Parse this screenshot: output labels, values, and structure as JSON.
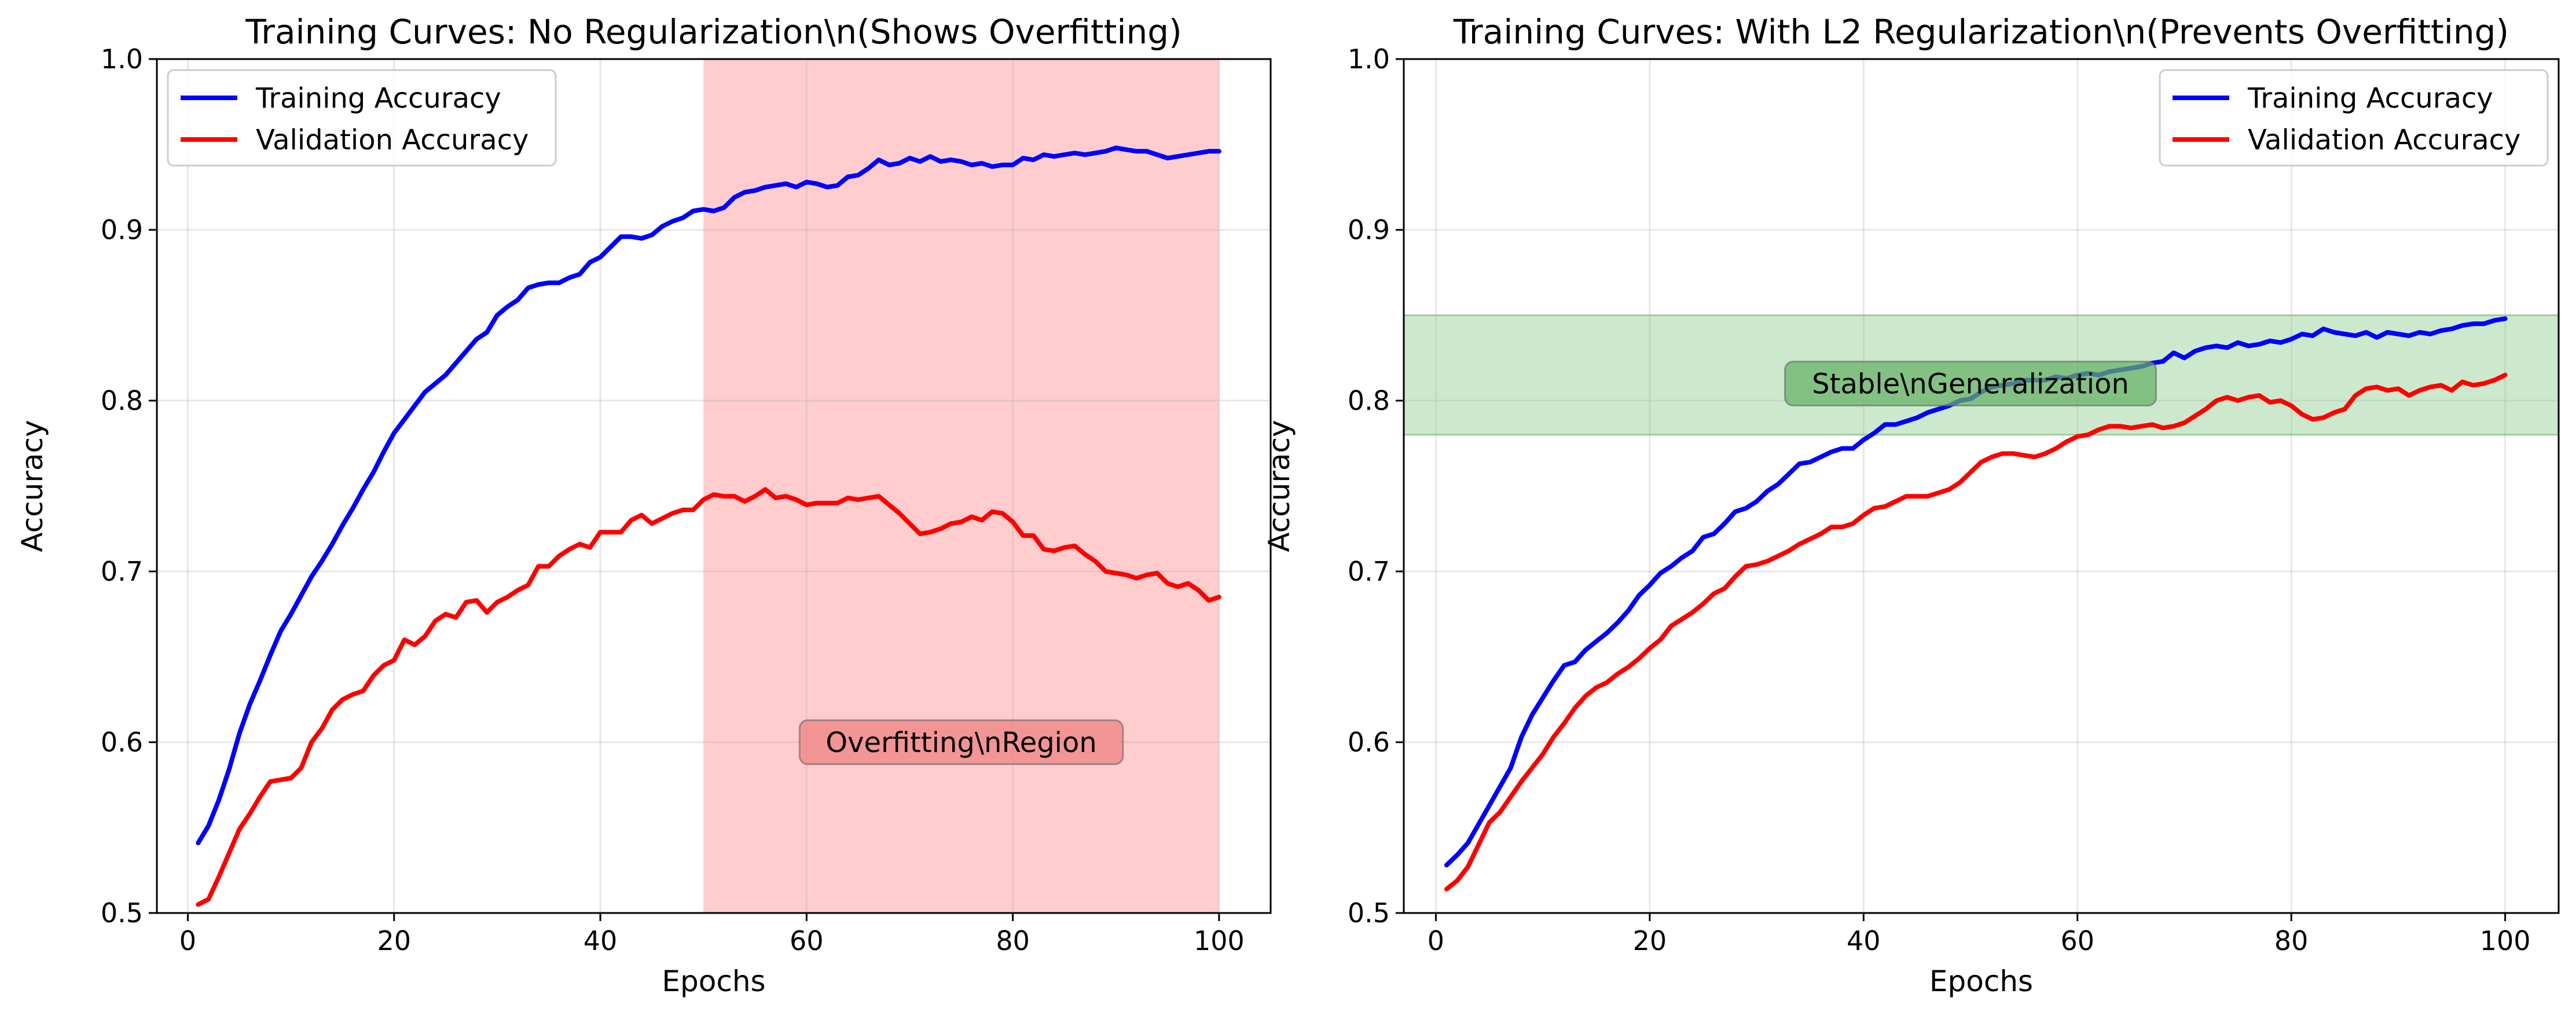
{
  "chart_data": [
    {
      "type": "line",
      "title": "Training Curves: No Regularization\\n(Shows Overfitting)",
      "xlabel": "Epochs",
      "ylabel": "Accuracy",
      "xlim": [
        -3,
        105
      ],
      "ylim": [
        0.5,
        1.0
      ],
      "xticks": [
        0,
        20,
        40,
        60,
        80,
        100
      ],
      "yticks": [
        0.5,
        0.6,
        0.7,
        0.8,
        0.9,
        1.0
      ],
      "grid": true,
      "legend_position": "upper-left",
      "x": [
        1,
        2,
        3,
        4,
        5,
        6,
        7,
        8,
        9,
        10,
        11,
        12,
        13,
        14,
        15,
        16,
        17,
        18,
        19,
        20,
        21,
        22,
        23,
        24,
        25,
        26,
        27,
        28,
        29,
        30,
        31,
        32,
        33,
        34,
        35,
        36,
        37,
        38,
        39,
        40,
        41,
        42,
        43,
        44,
        45,
        46,
        47,
        48,
        49,
        50,
        51,
        52,
        53,
        54,
        55,
        56,
        57,
        58,
        59,
        60,
        61,
        62,
        63,
        64,
        65,
        66,
        67,
        68,
        69,
        70,
        71,
        72,
        73,
        74,
        75,
        76,
        77,
        78,
        79,
        80,
        81,
        82,
        83,
        84,
        85,
        86,
        87,
        88,
        89,
        90,
        91,
        92,
        93,
        94,
        95,
        96,
        97,
        98,
        99,
        100
      ],
      "series": [
        {
          "name": "Training Accuracy",
          "color": "#0000ff",
          "values": [
            0.541,
            0.551,
            0.566,
            0.584,
            0.605,
            0.622,
            0.636,
            0.651,
            0.665,
            0.675,
            0.686,
            0.697,
            0.706,
            0.716,
            0.727,
            0.737,
            0.748,
            0.758,
            0.77,
            0.781,
            0.789,
            0.797,
            0.805,
            0.81,
            0.815,
            0.822,
            0.829,
            0.836,
            0.84,
            0.85,
            0.855,
            0.859,
            0.866,
            0.868,
            0.869,
            0.869,
            0.872,
            0.874,
            0.881,
            0.884,
            0.89,
            0.896,
            0.896,
            0.895,
            0.897,
            0.902,
            0.905,
            0.907,
            0.911,
            0.912,
            0.911,
            0.913,
            0.919,
            0.922,
            0.923,
            0.925,
            0.926,
            0.927,
            0.925,
            0.928,
            0.927,
            0.925,
            0.926,
            0.931,
            0.932,
            0.936,
            0.941,
            0.938,
            0.939,
            0.942,
            0.94,
            0.943,
            0.94,
            0.941,
            0.94,
            0.938,
            0.939,
            0.937,
            0.938,
            0.938,
            0.942,
            0.941,
            0.944,
            0.943,
            0.944,
            0.945,
            0.944,
            0.945,
            0.946,
            0.948,
            0.947,
            0.946,
            0.946,
            0.944,
            0.942,
            0.943,
            0.944,
            0.945,
            0.946,
            0.946
          ]
        },
        {
          "name": "Validation Accuracy",
          "color": "#ff0000",
          "values": [
            0.505,
            0.508,
            0.521,
            0.535,
            0.549,
            0.558,
            0.568,
            0.577,
            0.578,
            0.579,
            0.585,
            0.6,
            0.608,
            0.619,
            0.625,
            0.628,
            0.63,
            0.639,
            0.645,
            0.648,
            0.66,
            0.657,
            0.662,
            0.671,
            0.675,
            0.673,
            0.682,
            0.683,
            0.676,
            0.682,
            0.685,
            0.689,
            0.692,
            0.703,
            0.703,
            0.709,
            0.713,
            0.716,
            0.714,
            0.723,
            0.723,
            0.723,
            0.73,
            0.733,
            0.728,
            0.731,
            0.734,
            0.736,
            0.736,
            0.742,
            0.745,
            0.744,
            0.744,
            0.741,
            0.744,
            0.748,
            0.743,
            0.744,
            0.742,
            0.739,
            0.74,
            0.74,
            0.74,
            0.743,
            0.742,
            0.743,
            0.744,
            0.739,
            0.734,
            0.728,
            0.722,
            0.723,
            0.725,
            0.728,
            0.729,
            0.732,
            0.73,
            0.735,
            0.734,
            0.729,
            0.721,
            0.721,
            0.713,
            0.712,
            0.714,
            0.715,
            0.71,
            0.706,
            0.7,
            0.699,
            0.698,
            0.696,
            0.698,
            0.699,
            0.693,
            0.691,
            0.693,
            0.689,
            0.683,
            0.685
          ]
        }
      ],
      "highlight_band": {
        "axis": "x",
        "from": 50,
        "to": 100,
        "color": "#ff6666"
      },
      "annotation": {
        "text": "Overfitting\\nRegion",
        "x": 75,
        "y": 0.6,
        "box_color": "#f08080"
      }
    },
    {
      "type": "line",
      "title": "Training Curves: With L2 Regularization\\n(Prevents Overfitting)",
      "xlabel": "Epochs",
      "ylabel": "Accuracy",
      "xlim": [
        -3,
        105
      ],
      "ylim": [
        0.5,
        1.0
      ],
      "xticks": [
        0,
        20,
        40,
        60,
        80,
        100
      ],
      "yticks": [
        0.5,
        0.6,
        0.7,
        0.8,
        0.9,
        1.0
      ],
      "grid": true,
      "legend_position": "upper-right",
      "x": [
        1,
        2,
        3,
        4,
        5,
        6,
        7,
        8,
        9,
        10,
        11,
        12,
        13,
        14,
        15,
        16,
        17,
        18,
        19,
        20,
        21,
        22,
        23,
        24,
        25,
        26,
        27,
        28,
        29,
        30,
        31,
        32,
        33,
        34,
        35,
        36,
        37,
        38,
        39,
        40,
        41,
        42,
        43,
        44,
        45,
        46,
        47,
        48,
        49,
        50,
        51,
        52,
        53,
        54,
        55,
        56,
        57,
        58,
        59,
        60,
        61,
        62,
        63,
        64,
        65,
        66,
        67,
        68,
        69,
        70,
        71,
        72,
        73,
        74,
        75,
        76,
        77,
        78,
        79,
        80,
        81,
        82,
        83,
        84,
        85,
        86,
        87,
        88,
        89,
        90,
        91,
        92,
        93,
        94,
        95,
        96,
        97,
        98,
        99,
        100
      ],
      "series": [
        {
          "name": "Training Accuracy",
          "color": "#0000ff",
          "values": [
            0.528,
            0.534,
            0.541,
            0.552,
            0.563,
            0.574,
            0.585,
            0.603,
            0.616,
            0.626,
            0.636,
            0.645,
            0.647,
            0.654,
            0.659,
            0.664,
            0.67,
            0.677,
            0.686,
            0.692,
            0.699,
            0.703,
            0.708,
            0.712,
            0.72,
            0.722,
            0.728,
            0.735,
            0.737,
            0.741,
            0.747,
            0.751,
            0.757,
            0.763,
            0.764,
            0.767,
            0.77,
            0.772,
            0.772,
            0.777,
            0.781,
            0.786,
            0.786,
            0.788,
            0.79,
            0.793,
            0.795,
            0.797,
            0.8,
            0.801,
            0.805,
            0.808,
            0.809,
            0.81,
            0.812,
            0.812,
            0.812,
            0.814,
            0.813,
            0.815,
            0.816,
            0.815,
            0.817,
            0.818,
            0.819,
            0.82,
            0.822,
            0.823,
            0.828,
            0.825,
            0.829,
            0.831,
            0.832,
            0.831,
            0.834,
            0.832,
            0.833,
            0.835,
            0.834,
            0.836,
            0.839,
            0.838,
            0.842,
            0.84,
            0.839,
            0.838,
            0.84,
            0.837,
            0.84,
            0.839,
            0.838,
            0.84,
            0.839,
            0.841,
            0.842,
            0.844,
            0.845,
            0.845,
            0.847,
            0.848
          ]
        },
        {
          "name": "Validation Accuracy",
          "color": "#ff0000",
          "values": [
            0.514,
            0.519,
            0.527,
            0.54,
            0.553,
            0.559,
            0.568,
            0.577,
            0.585,
            0.593,
            0.603,
            0.611,
            0.62,
            0.627,
            0.632,
            0.635,
            0.64,
            0.644,
            0.649,
            0.655,
            0.66,
            0.668,
            0.672,
            0.676,
            0.681,
            0.687,
            0.69,
            0.697,
            0.703,
            0.704,
            0.706,
            0.709,
            0.712,
            0.716,
            0.719,
            0.722,
            0.726,
            0.726,
            0.728,
            0.733,
            0.737,
            0.738,
            0.741,
            0.744,
            0.744,
            0.744,
            0.746,
            0.748,
            0.752,
            0.758,
            0.764,
            0.767,
            0.769,
            0.769,
            0.768,
            0.767,
            0.769,
            0.772,
            0.776,
            0.779,
            0.78,
            0.783,
            0.785,
            0.785,
            0.784,
            0.785,
            0.786,
            0.784,
            0.785,
            0.787,
            0.791,
            0.795,
            0.8,
            0.802,
            0.8,
            0.802,
            0.803,
            0.799,
            0.8,
            0.797,
            0.792,
            0.789,
            0.79,
            0.793,
            0.795,
            0.803,
            0.807,
            0.808,
            0.806,
            0.807,
            0.803,
            0.806,
            0.808,
            0.809,
            0.806,
            0.811,
            0.809,
            0.81,
            0.812,
            0.815
          ]
        }
      ],
      "highlight_band": {
        "axis": "y",
        "from": 0.78,
        "to": 0.85,
        "color": "#66bb66"
      },
      "annotation": {
        "text": "Stable\\nGeneralization",
        "x": 50,
        "y": 0.81,
        "box_color": "#66b266"
      }
    }
  ]
}
